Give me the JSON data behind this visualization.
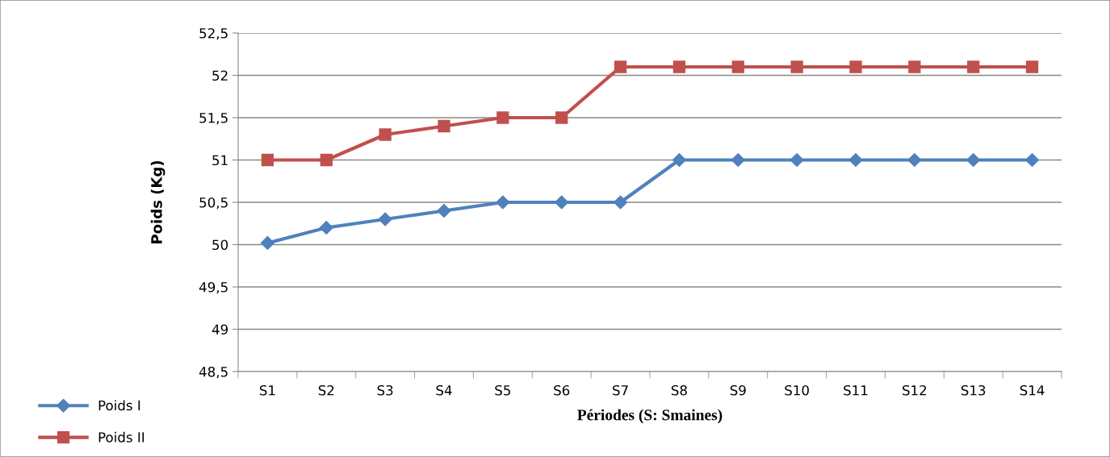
{
  "chart_data": {
    "type": "line",
    "xlabel": "Périodes (S: Smaines)",
    "ylabel": "Poids (Kg)",
    "categories": [
      "S1",
      "S2",
      "S3",
      "S4",
      "S5",
      "S6",
      "S7",
      "S8",
      "S9",
      "S10",
      "S11",
      "S12",
      "S13",
      "S14"
    ],
    "series": [
      {
        "name": "Poids I",
        "color": "#4f81bd",
        "marker": "diamond",
        "values": [
          50.02,
          50.2,
          50.3,
          50.4,
          50.5,
          50.5,
          50.5,
          51,
          51,
          51,
          51,
          51,
          51,
          51
        ]
      },
      {
        "name": "Poids II",
        "color": "#c0504d",
        "marker": "square",
        "values": [
          51,
          51,
          51.3,
          51.4,
          51.5,
          51.5,
          52.1,
          52.1,
          52.1,
          52.1,
          52.1,
          52.1,
          52.1,
          52.1
        ]
      }
    ],
    "ylim": [
      48.5,
      52.5
    ],
    "yticks": [
      {
        "value": 48.5,
        "label": "48,5"
      },
      49,
      {
        "value": 49.5,
        "label": "49,5"
      },
      50,
      {
        "value": 50.5,
        "label": "50,5"
      },
      51,
      {
        "value": 51.5,
        "label": "51,5"
      },
      52,
      {
        "value": 52.5,
        "label": "52,5"
      }
    ],
    "grid": "y",
    "legend": "bottom left"
  }
}
